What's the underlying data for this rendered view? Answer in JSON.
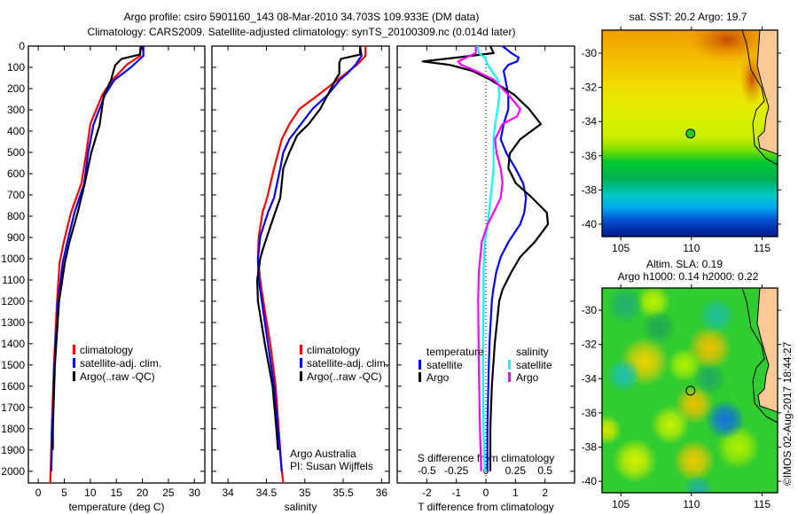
{
  "title": {
    "line1": "Argo profile: csiro 5901160_143 08-Mar-2010 34.703S 109.933E (DM data)",
    "line2": "Climatology: CARS2009. Satellite-adjusted climatology: synTS_20100309.nc (0.014d later)"
  },
  "depth_axis": {
    "ticks": [
      "0",
      "100",
      "200",
      "300",
      "400",
      "500",
      "600",
      "700",
      "800",
      "900",
      "1000",
      "1100",
      "1200",
      "1300",
      "1400",
      "1500",
      "1600",
      "1700",
      "1800",
      "1900",
      "2000"
    ],
    "ylim": [
      0,
      2055
    ]
  },
  "chart_data": [
    {
      "id": "temperature",
      "type": "line",
      "xlabel": "temperature (deg C)",
      "xlim": [
        -1.9,
        32
      ],
      "xticks": [
        "0",
        "5",
        "10",
        "15",
        "20",
        "25",
        "30"
      ],
      "ylabel": "depth",
      "legend": [
        "climatology",
        "satellite-adj. clim.",
        "Argo(..raw -QC)"
      ],
      "series": [
        {
          "name": "climatology",
          "color": "#ff0000",
          "depth": [
            0,
            46,
            88,
            158,
            229,
            367,
            505,
            645,
            783,
            922,
            1020,
            1200,
            1500,
            1800,
            2055
          ],
          "values": [
            19.6,
            19.6,
            17.0,
            14.3,
            12.3,
            10.0,
            9.2,
            8.3,
            6.3,
            4.9,
            4.1,
            3.6,
            3.0,
            2.6,
            2.3
          ]
        },
        {
          "name": "satellite-adj. clim.",
          "color": "#0000ff",
          "depth": [
            0,
            46,
            100,
            160,
            230,
            370,
            500,
            650,
            780,
            920,
            1020,
            1200,
            1500,
            1800,
            2000
          ],
          "values": [
            20.2,
            20.2,
            17.8,
            14.6,
            12.8,
            10.6,
            9.6,
            8.8,
            7.0,
            5.6,
            4.7,
            3.8,
            3.1,
            2.7,
            2.5
          ]
        },
        {
          "name": "Argo(..raw -QC)",
          "color": "#000000",
          "depth": [
            0,
            40,
            60,
            90,
            130,
            160,
            230,
            370,
            500,
            650,
            780,
            920,
            1020,
            1200,
            1500,
            1800,
            1900
          ],
          "values": [
            19.8,
            19.5,
            16.0,
            14.8,
            14.3,
            14.0,
            12.6,
            11.8,
            10.2,
            8.9,
            7.6,
            6.0,
            5.1,
            4.0,
            3.2,
            2.8,
            2.8
          ]
        }
      ]
    },
    {
      "id": "salinity",
      "type": "line",
      "xlabel": "salinity",
      "xlim": [
        33.79,
        36.1
      ],
      "xticks": [
        "34",
        "34.5",
        "35",
        "35.5",
        "36"
      ],
      "legend": [
        "climatology",
        "satellite-adj. clim.",
        "Argo(..raw -QC)"
      ],
      "series": [
        {
          "name": "climatology",
          "color": "#ff0000",
          "depth": [
            0,
            46,
            88,
            158,
            229,
            296,
            367,
            438,
            575,
            713,
            783,
            896,
            1000,
            1100,
            1200,
            1400,
            1600,
            1800,
            2000,
            2055
          ],
          "values": [
            35.79,
            35.79,
            35.68,
            35.43,
            35.18,
            34.93,
            34.8,
            34.7,
            34.6,
            34.51,
            34.45,
            34.4,
            34.39,
            34.42,
            34.46,
            34.55,
            34.62,
            34.66,
            34.7,
            34.72
          ]
        },
        {
          "name": "satellite-adj. clim.",
          "color": "#0000ff",
          "depth": [
            0,
            46,
            88,
            130,
            158,
            229,
            296,
            367,
            438,
            500,
            575,
            713,
            783,
            896,
            1000,
            1100,
            1200,
            1400,
            1600,
            1800,
            2000
          ],
          "values": [
            35.72,
            35.74,
            35.66,
            35.55,
            35.46,
            35.3,
            35.1,
            34.95,
            34.8,
            34.72,
            34.68,
            34.6,
            34.52,
            34.42,
            34.39,
            34.4,
            34.44,
            34.52,
            34.6,
            34.65,
            34.7
          ]
        },
        {
          "name": "Argo(..raw -QC)",
          "color": "#000000",
          "depth": [
            0,
            40,
            60,
            80,
            130,
            158,
            229,
            296,
            367,
            420,
            500,
            575,
            713,
            850,
            960,
            1000,
            1100,
            1200,
            1400,
            1600,
            1800,
            1900
          ],
          "values": [
            35.72,
            35.72,
            35.47,
            35.45,
            35.45,
            35.4,
            35.3,
            35.2,
            35.05,
            34.9,
            34.8,
            34.72,
            34.68,
            34.55,
            34.45,
            34.42,
            34.38,
            34.39,
            34.48,
            34.58,
            34.63,
            34.65
          ]
        }
      ]
    },
    {
      "id": "difference",
      "type": "line",
      "xlabel": "T difference from climatology",
      "x2label": "S difference from climatology",
      "xlim": [
        -3.0,
        3.0
      ],
      "xticks": [
        "-2",
        "-1",
        "0",
        "1",
        "2"
      ],
      "x2ticks": [
        "-0.5",
        "-0.25",
        "0",
        "0.25",
        "0.5"
      ],
      "s_to_t_scale": 4,
      "legend": {
        "temperature_heading": "temperature",
        "salinity_heading": "salinity",
        "items": [
          "satellite",
          "Argo",
          "satellite",
          "Argo"
        ]
      },
      "series": [
        {
          "name": "temperature satellite",
          "var": "T",
          "color": "#0000ff",
          "depth": [
            0,
            33,
            54,
            72,
            88,
            117,
            158,
            229,
            296,
            367,
            438,
            505,
            575,
            645,
            713,
            783,
            838,
            922,
            992,
            1063,
            1146,
            1200,
            1400,
            1600,
            1800,
            2000
          ],
          "values": [
            0.56,
            0.86,
            1.11,
            1.06,
            0.76,
            0.6,
            0.66,
            0.76,
            0.76,
            0.6,
            0.5,
            0.7,
            1.0,
            1.26,
            1.36,
            1.3,
            1.16,
            0.76,
            0.5,
            0.35,
            0.25,
            0.2,
            0.12,
            0.08,
            0.05,
            0.05
          ]
        },
        {
          "name": "temperature Argo",
          "var": "T",
          "color": "#000000",
          "depth": [
            0,
            33,
            54,
            72,
            88,
            117,
            158,
            229,
            296,
            367,
            438,
            505,
            575,
            645,
            713,
            783,
            838,
            922,
            992,
            1063,
            1146,
            1200,
            1400,
            1600,
            1800,
            2000
          ],
          "values": [
            0.15,
            0.26,
            -1.0,
            -2.14,
            -1.24,
            -0.45,
            0.15,
            0.96,
            1.46,
            1.86,
            1.16,
            0.81,
            0.76,
            1.01,
            1.56,
            2.06,
            2.1,
            1.65,
            1.16,
            0.86,
            0.56,
            0.45,
            0.3,
            0.2,
            0.15,
            0.15
          ]
        },
        {
          "name": "salinity satellite",
          "var": "S",
          "color": "#00ffff",
          "depth": [
            0,
            33,
            54,
            88,
            117,
            158,
            229,
            296,
            367,
            438,
            575,
            713,
            838,
            922,
            1063,
            1200,
            1500,
            1800,
            2000
          ],
          "values": [
            -0.07,
            -0.06,
            -0.01,
            0.015,
            0.05,
            0.1,
            0.115,
            0.1,
            0.078,
            0.065,
            0.065,
            0.04,
            0.015,
            -0.01,
            -0.02,
            -0.02,
            -0.025,
            -0.02,
            -0.01
          ]
        },
        {
          "name": "salinity Argo",
          "var": "S",
          "color": "#ff00ff",
          "depth": [
            0,
            33,
            72,
            88,
            117,
            158,
            229,
            296,
            330,
            367,
            438,
            505,
            575,
            645,
            713,
            783,
            838,
            922,
            1063,
            1200,
            1500,
            1800,
            2000
          ],
          "values": [
            -0.085,
            -0.085,
            -0.235,
            -0.21,
            -0.085,
            0.065,
            0.19,
            0.29,
            0.265,
            0.14,
            0.078,
            0.09,
            0.125,
            0.14,
            0.125,
            0.065,
            0.015,
            -0.035,
            -0.06,
            -0.065,
            -0.06,
            -0.05,
            -0.04
          ]
        }
      ]
    }
  ],
  "maps": [
    {
      "id": "sst",
      "title_lines": [
        "sat. SST: 20.2 Argo: 19.7"
      ],
      "lon_ticks": [
        "105",
        "110",
        "115"
      ],
      "lat_ticks": [
        "-30",
        "-32",
        "-34",
        "-36",
        "-38",
        "-40"
      ],
      "lon_range": [
        103.67,
        116.1
      ],
      "lat_range": [
        -40.73,
        -28.65
      ],
      "argo_position": {
        "lon": 109.933,
        "lat": -34.703
      },
      "marker_color": "#22cc22"
    },
    {
      "id": "sla",
      "title_lines": [
        "Altim. SLA: 0.19",
        "Argo h1000: 0.14 h2000: 0.22"
      ],
      "lon_ticks": [
        "105",
        "110",
        "115"
      ],
      "lat_ticks": [
        "-30",
        "-32",
        "-34",
        "-36",
        "-38",
        "-40"
      ],
      "lon_range": [
        103.67,
        116.1
      ],
      "lat_range": [
        -40.67,
        -28.7
      ],
      "argo_position": {
        "lon": 109.933,
        "lat": -34.703
      },
      "marker_color": "#ccee00"
    }
  ],
  "credits": {
    "institution": "Argo Australia",
    "pi": "PI: Susan Wijffels",
    "copyright": "©IMOS 02-Aug-2017 18:44:27"
  }
}
